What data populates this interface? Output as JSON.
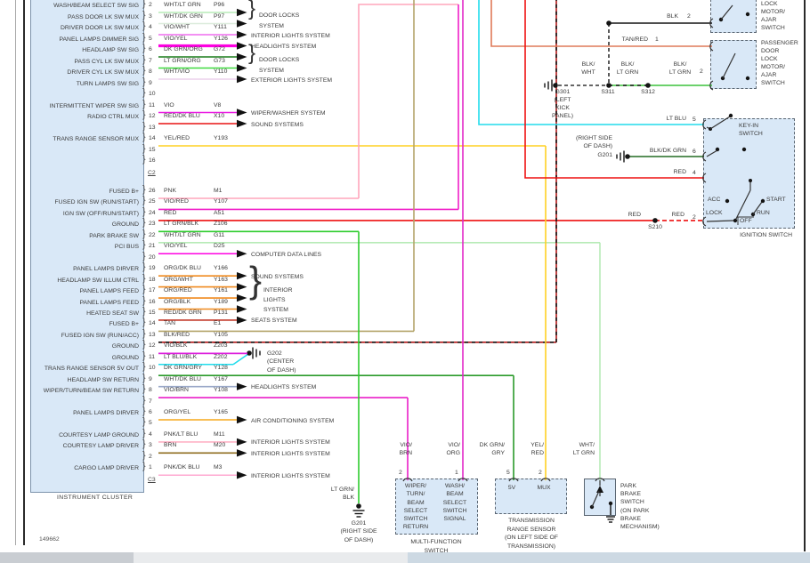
{
  "diagram": {
    "cluster": {
      "label": "INSTRUMENT CLUSTER",
      "connector_c2_label": "C2",
      "connector_c3_label": "C3"
    },
    "footer": {
      "sheet_number": "149662"
    },
    "connector_c2": {
      "pins": [
        {
          "pin": "2",
          "color": "WHT/LT GRN",
          "circuit": "P96",
          "signal": "WASH/BEAM SELECT SW SIG"
        },
        {
          "pin": "3",
          "color": "WHT/DK GRN",
          "circuit": "P97",
          "signal": "PASS DOOR LK SW MUX"
        },
        {
          "pin": "4",
          "color": "VIO/WHT",
          "circuit": "Y111",
          "signal": "DRIVER DOOR LK SW MUX"
        },
        {
          "pin": "5",
          "color": "VIO/YEL",
          "circuit": "Y126",
          "signal": "PANEL LAMPS DIMMER SIG"
        },
        {
          "pin": "6",
          "color": "DK GRN/ORG",
          "circuit": "G72",
          "signal": "HEADLAMP SW SIG"
        },
        {
          "pin": "7",
          "color": "LT GRN/ORG",
          "circuit": "G73",
          "signal": "PASS CYL LK SW MUX"
        },
        {
          "pin": "8",
          "color": "WHT/VIO",
          "circuit": "Y110",
          "signal": "DRIVER CYL LK SW MUX"
        },
        {
          "pin": "9",
          "signal": "TURN LAMPS SW SIG"
        },
        {
          "pin": "10"
        },
        {
          "pin": "11",
          "color": "VIO",
          "circuit": "V8",
          "signal": "INTERMITTENT WIPER SW SIG"
        },
        {
          "pin": "12",
          "color": "RED/DK BLU",
          "circuit": "X10",
          "signal": "RADIO CTRL MUX"
        },
        {
          "pin": "13"
        },
        {
          "pin": "14",
          "color": "YEL/RED",
          "circuit": "Y193",
          "signal": "TRANS RANGE SENSOR MUX"
        },
        {
          "pin": "15"
        },
        {
          "pin": "16"
        }
      ]
    },
    "connector_c3": {
      "pins": [
        {
          "pin": "26",
          "color": "PNK",
          "circuit": "M1",
          "signal": "FUSED B+"
        },
        {
          "pin": "25",
          "color": "VIO/RED",
          "circuit": "Y107",
          "signal": "FUSED IGN SW (RUN/START)"
        },
        {
          "pin": "24",
          "color": "RED",
          "circuit": "A51",
          "signal": "IGN SW (OFF/RUN/START)"
        },
        {
          "pin": "23",
          "color": "LT GRN/BLK",
          "circuit": "Z106",
          "signal": "GROUND"
        },
        {
          "pin": "22",
          "color": "WHT/LT GRN",
          "circuit": "G11",
          "signal": "PARK BRAKE SW"
        },
        {
          "pin": "21",
          "color": "VIO/YEL",
          "circuit": "D25",
          "signal": "PCI BUS"
        },
        {
          "pin": "20"
        },
        {
          "pin": "19",
          "color": "ORG/DK BLU",
          "circuit": "Y166",
          "signal": "PANEL LAMPS DIRVER"
        },
        {
          "pin": "18",
          "color": "ORG/WHT",
          "circuit": "Y163",
          "signal": "HEADLAMP SW ILLUM CTRL"
        },
        {
          "pin": "17",
          "color": "ORG/RED",
          "circuit": "Y161",
          "signal": "PANEL LAMPS FEED"
        },
        {
          "pin": "16",
          "color": "ORG/BLK",
          "circuit": "Y189",
          "signal": "PANEL LAMPS FEED"
        },
        {
          "pin": "15",
          "color": "RED/DK GRN",
          "circuit": "P131",
          "signal": "HEATED SEAT SW"
        },
        {
          "pin": "14",
          "color": "TAN",
          "circuit": "E1",
          "signal": "FUSED B+"
        },
        {
          "pin": "13",
          "color": "BLK/RED",
          "circuit": "Y105",
          "signal": "FUSED IGN SW (RUN/ACC)"
        },
        {
          "pin": "12",
          "color": "VIO/BLK",
          "circuit": "Z203",
          "signal": "GROUND"
        },
        {
          "pin": "11",
          "color": "LT BLU/BLK",
          "circuit": "Z202",
          "signal": "GROUND"
        },
        {
          "pin": "10",
          "color": "DK GRN/GRY",
          "circuit": "Y128",
          "signal": "TRANS RANGE SENSOR 5V OUT"
        },
        {
          "pin": "9",
          "color": "WHT/DK BLU",
          "circuit": "Y167",
          "signal": "HEADLAMP SW RETURN"
        },
        {
          "pin": "8",
          "color": "VIO/BRN",
          "circuit": "Y108",
          "signal": "WIPER/TURN/BEAM SW RETURN"
        },
        {
          "pin": "7"
        },
        {
          "pin": "6",
          "color": "ORG/YEL",
          "circuit": "Y165",
          "signal": "PANEL LAMPS DIRVER"
        },
        {
          "pin": "5"
        },
        {
          "pin": "4",
          "color": "PNK/LT BLU",
          "circuit": "M11",
          "signal": "COURTESY LAMP GROUND"
        },
        {
          "pin": "3",
          "color": "BRN",
          "circuit": "M20",
          "signal": "COURTESY LAMP DRIVER"
        },
        {
          "pin": "2"
        },
        {
          "pin": "1",
          "color": "PNK/DK BLU",
          "circuit": "M3",
          "signal": "CARGO LAMP DRIVER"
        }
      ]
    },
    "callouts_c2": [
      {
        "pins": [
          2,
          3
        ],
        "type": "brace2",
        "lines": [
          "DOOR LOCKS",
          "SYSTEM"
        ]
      },
      {
        "pins": [
          4
        ],
        "type": "single",
        "label": "INTERIOR LIGHTS SYSTEM"
      },
      {
        "pins": [
          5
        ],
        "type": "single",
        "label": "HEADLIGHTS SYSTEM"
      },
      {
        "pins": [
          6,
          7
        ],
        "type": "brace2",
        "lines": [
          "DOOR LOCKS",
          "SYSTEM"
        ]
      },
      {
        "pins": [
          8
        ],
        "type": "single",
        "label": "EXTERIOR LIGHTS SYSTEM"
      },
      {
        "pins": [
          11
        ],
        "type": "single",
        "label": "WIPER/WASHER SYSTEM"
      },
      {
        "pins": [
          12
        ],
        "type": "single",
        "label": "SOUND SYSTEMS"
      }
    ],
    "callouts_c3": [
      {
        "pins": [
          21
        ],
        "type": "single",
        "label": "COMPUTER DATA LINES"
      },
      {
        "pins": [
          19
        ],
        "type": "single",
        "label": "SOUND SYSTEMS"
      },
      {
        "pins": [
          18,
          17,
          16
        ],
        "type": "brace3",
        "lines": [
          "INTERIOR",
          "LIGHTS",
          "SYSTEM"
        ]
      },
      {
        "pins": [
          15
        ],
        "type": "single",
        "label": "SEATS SYSTEM"
      },
      {
        "pins": [
          9
        ],
        "type": "single",
        "label": "HEADLIGHTS SYSTEM"
      },
      {
        "pins": [
          6
        ],
        "type": "single",
        "label": "AIR CONDITIONING SYSTEM"
      },
      {
        "pins": [
          4
        ],
        "type": "single",
        "label": "INTERIOR LIGHTS SYSTEM"
      },
      {
        "pins": [
          3
        ],
        "type": "single",
        "label": "INTERIOR LIGHTS SYSTEM"
      },
      {
        "pins": [
          1
        ],
        "type": "single",
        "label": "INTERIOR LIGHTS SYSTEM"
      }
    ],
    "components": {
      "driver_door_lock": {
        "lines": [
          "LOCK",
          "MOTOR/",
          "AJAR",
          "SWITCH"
        ]
      },
      "passenger_door_lock": {
        "lines": [
          "PASSENGER",
          "DOOR",
          "LOCK",
          "MOTOR/",
          "AJAR",
          "SWITCH"
        ]
      },
      "ignition_switch": {
        "label": "IGNITION SWITCH",
        "key_in_lines": [
          "KEY-IN",
          "SWITCH"
        ],
        "positions": {
          "acc": "ACC",
          "lock": "LOCK",
          "off": "OFF",
          "run": "RUN",
          "start": "START"
        },
        "pin_numbers": {
          "p5": "5",
          "p6": "6",
          "p4": "4",
          "p2": "2"
        }
      },
      "park_brake": {
        "lines": [
          "PARK",
          "BRAKE",
          "SWITCH",
          "(ON PARK",
          "BRAKE",
          "MECHANISM)"
        ]
      },
      "multi_function_switch": {
        "col1": [
          "WIPER/",
          "TURN/",
          "BEAM",
          "SELECT",
          "SWITCH",
          "RETURN"
        ],
        "col2": [
          "WASH/",
          "BEAM",
          "SELECT",
          "SWITCH",
          "SIGNAL"
        ],
        "label_lines": [
          "MULTI-FUNCTION",
          "SWITCH"
        ],
        "pin2": "2",
        "pin1": "1"
      },
      "trans_range_sensor": {
        "pin_5v": "5V",
        "pin_mux": "MUX",
        "pin5": "5",
        "pin2": "2",
        "label_lines": [
          "TRANSMISSION",
          "RANGE SENSOR",
          "(ON LEFT SIDE OF",
          "TRANSMISSION)"
        ]
      }
    },
    "grounds": {
      "g301": [
        "G301",
        "(LEFT",
        "KICK",
        "PANEL)"
      ],
      "g201_mid": [
        "(RIGHT SIDE",
        "OF DASH)",
        "G201"
      ],
      "g201_bottom": [
        "G201",
        "(RIGHT SIDE",
        "OF DASH)"
      ],
      "g202": [
        "G202",
        "(CENTER",
        "OF DASH)"
      ]
    },
    "splices": {
      "s311": "S311",
      "s312": "S312",
      "s210": "S210"
    },
    "wire_tags": {
      "lt_blu": "LT BLU",
      "blk_dk_grn": "BLK/DK GRN",
      "red_4": "RED",
      "red_l": "RED",
      "red_r": "RED",
      "tan_red": "TAN/RED",
      "blk": "BLK",
      "blk_wht": [
        "BLK/",
        "WHT"
      ],
      "blk_ltgrn_a": [
        "BLK/",
        "LT GRN"
      ],
      "blk_ltgrn_b": [
        "BLK/",
        "LT GRN"
      ],
      "vio_brn": [
        "VIO/",
        "BRN"
      ],
      "vio_org": [
        "VIO/",
        "ORG"
      ],
      "dk_grn_gry": [
        "DK GRN/",
        "GRY"
      ],
      "yel_red": [
        "YEL/",
        "RED"
      ],
      "wht_lt_grn": [
        "WHT/",
        "LT GRN"
      ],
      "lt_grn_blk": [
        "LT GRN/",
        "BLK"
      ],
      "n1": "1",
      "n2": "2",
      "n2b": "2",
      "n2c": "2",
      "n4": "4",
      "n5": "5",
      "n6": "6",
      "mfs_n2": "2",
      "mfs_n1": "1",
      "trs_n5": "5",
      "trs_n2": "2"
    }
  },
  "palette": {
    "WHT/LT GRN": "#b7ebb7",
    "WHT/DK GRN": "#dcecdc",
    "VIO/WHT": "#ef6cef",
    "VIO/YEL": "#ff00e2",
    "DK GRN/ORG": "#1b7d1b",
    "LT GRN/ORG": "#41d941",
    "WHT/VIO": "#ecd0ec",
    "VIO": "#ea1ce2",
    "RED/DK BLU": "#e81414",
    "YEL/RED": "#ffd023",
    "PNK": "#ffa6bc",
    "VIO/RED": "#f01fc8",
    "RED": "#ee1111",
    "LT GRN/BLK": "#2ecc2e",
    "VIO/BLK": "#dc1edc",
    "LT BLU/BLK": "#22dcec",
    "DK GRN/GRY": "#2a9a2a",
    "WHT/DK BLU": "#9aa8c8",
    "VIO/BRN": "#ea1ec8",
    "VIO/ORG": "#e228c8",
    "ORG/DK BLU": "#f08a1f",
    "ORG/WHT": "#f08a1f",
    "ORG/RED": "#f08a1f",
    "ORG/BLK": "#f08a1f",
    "RED/DK GRN": "#c33b2b",
    "TAN": "#b4a46a",
    "BLK/RED": "#b01818",
    "ORG/YEL": "#f6a81c",
    "PNK/LT BLU": "#ffb3c6",
    "BRN": "#8f6d1f",
    "PNK/DK BLU": "#ffaad2",
    "LT BLU": "#22dcec",
    "TAN/RED": "#df7a58",
    "BLK": "#141414",
    "BLK/DK GRN": "#226b22",
    "BLK/LT GRN": "#3cc23c",
    "BLK/WHT": "#333333"
  }
}
